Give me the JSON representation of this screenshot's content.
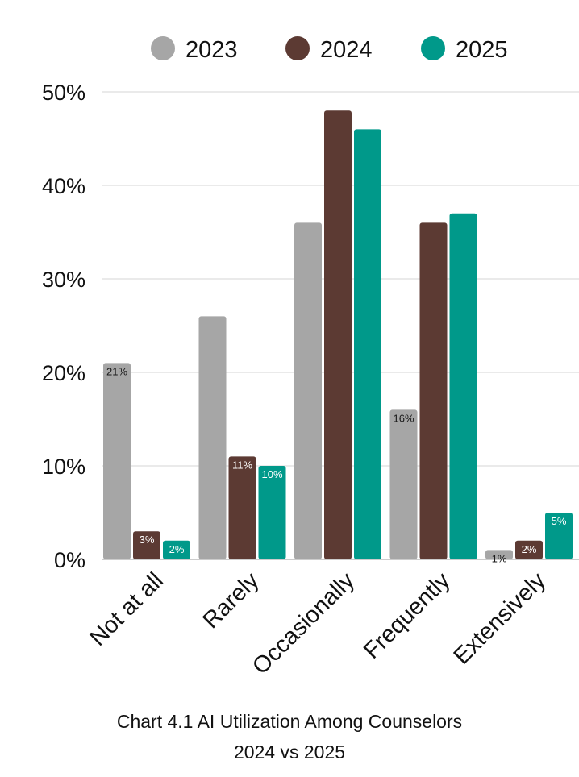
{
  "chart_data": {
    "type": "bar",
    "categories": [
      "Not at all",
      "Rarely",
      "Occasionally",
      "Frequently",
      "Extensively"
    ],
    "series": [
      {
        "name": "2023",
        "color": "#a6a6a6",
        "values": [
          21,
          26,
          36,
          16,
          1
        ],
        "labels": [
          "21%",
          "",
          "",
          "16%",
          "1%"
        ]
      },
      {
        "name": "2024",
        "color": "#5c3a33",
        "values": [
          3,
          11,
          48,
          36,
          2
        ],
        "labels": [
          "3%",
          "11%",
          "",
          "",
          "2%"
        ]
      },
      {
        "name": "2025",
        "color": "#00998a",
        "values": [
          2,
          10,
          46,
          37,
          5
        ],
        "labels": [
          "2%",
          "10%",
          "",
          "",
          "5%"
        ]
      }
    ],
    "ylim": [
      0,
      50
    ],
    "yticks": [
      "0%",
      "10%",
      "20%",
      "30%",
      "40%",
      "50%"
    ],
    "grid": true,
    "legend_position": "top",
    "title": "Chart 4.1 AI Utilization Among Counselors",
    "subtitle": "2024 vs 2025",
    "xlabel": "",
    "ylabel": ""
  }
}
